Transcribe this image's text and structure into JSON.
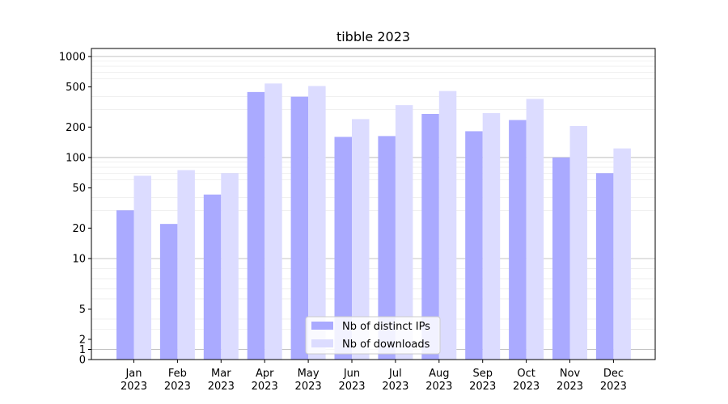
{
  "chart_data": {
    "type": "bar",
    "title": "tibble 2023",
    "xlabel": "",
    "ylabel": "",
    "yscale": "symlog",
    "ylim": [
      0,
      1200
    ],
    "grid": true,
    "legend_position": "lower-center",
    "categories": [
      {
        "month": "Jan",
        "year": "2023"
      },
      {
        "month": "Feb",
        "year": "2023"
      },
      {
        "month": "Mar",
        "year": "2023"
      },
      {
        "month": "Apr",
        "year": "2023"
      },
      {
        "month": "May",
        "year": "2023"
      },
      {
        "month": "Jun",
        "year": "2023"
      },
      {
        "month": "Jul",
        "year": "2023"
      },
      {
        "month": "Aug",
        "year": "2023"
      },
      {
        "month": "Sep",
        "year": "2023"
      },
      {
        "month": "Oct",
        "year": "2023"
      },
      {
        "month": "Nov",
        "year": "2023"
      },
      {
        "month": "Dec",
        "year": "2023"
      }
    ],
    "yticks": [
      {
        "value": 0,
        "label": "0"
      },
      {
        "value": 1,
        "label": "1"
      },
      {
        "value": 2,
        "label": "2"
      },
      {
        "value": 5,
        "label": "5"
      },
      {
        "value": 10,
        "label": "10"
      },
      {
        "value": 20,
        "label": "20"
      },
      {
        "value": 50,
        "label": "50"
      },
      {
        "value": 100,
        "label": "100"
      },
      {
        "value": 200,
        "label": "200"
      },
      {
        "value": 500,
        "label": "500"
      },
      {
        "value": 1000,
        "label": "1000"
      }
    ],
    "series": [
      {
        "name": "Nb of distinct IPs",
        "color": "#aaaaff",
        "values": [
          30,
          22,
          43,
          445,
          400,
          160,
          163,
          270,
          182,
          235,
          100,
          70
        ]
      },
      {
        "name": "Nb of downloads",
        "color": "#dcdcff",
        "values": [
          66,
          75,
          70,
          540,
          510,
          240,
          330,
          455,
          275,
          380,
          205,
          123
        ]
      }
    ]
  }
}
